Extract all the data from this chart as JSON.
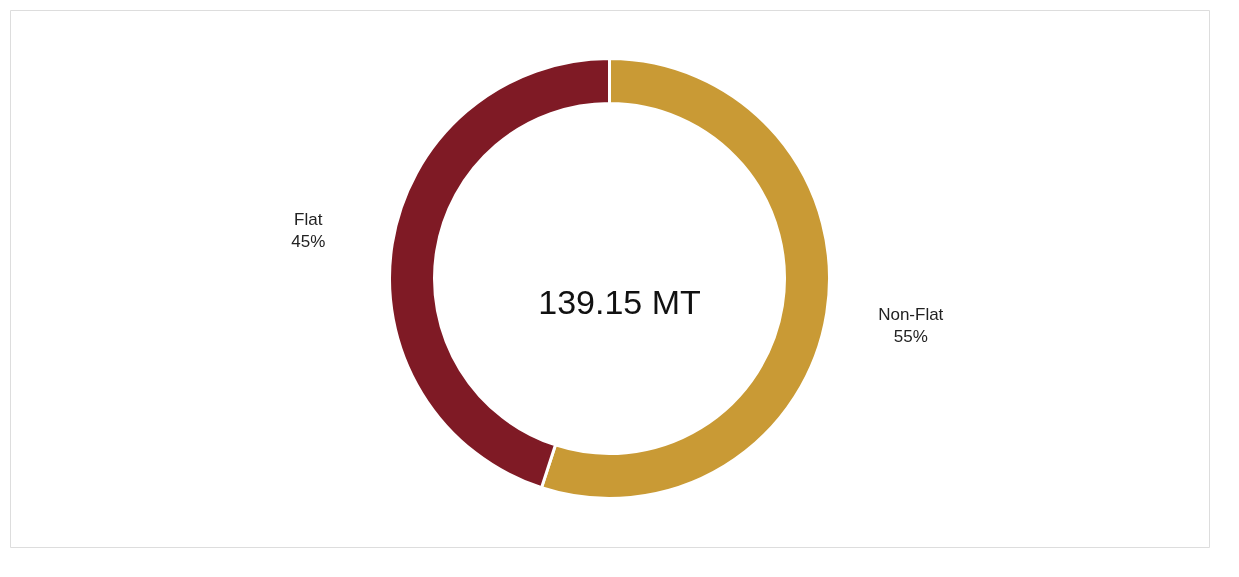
{
  "chart_data": {
    "type": "donut",
    "categories": [
      "Non-Flat",
      "Flat"
    ],
    "values": [
      55,
      45
    ],
    "colors": [
      "#c99a35",
      "#7f1a25"
    ],
    "value_labels": [
      "55%",
      "45%"
    ],
    "annotations": [
      "139.15 MT"
    ],
    "legend": false
  }
}
